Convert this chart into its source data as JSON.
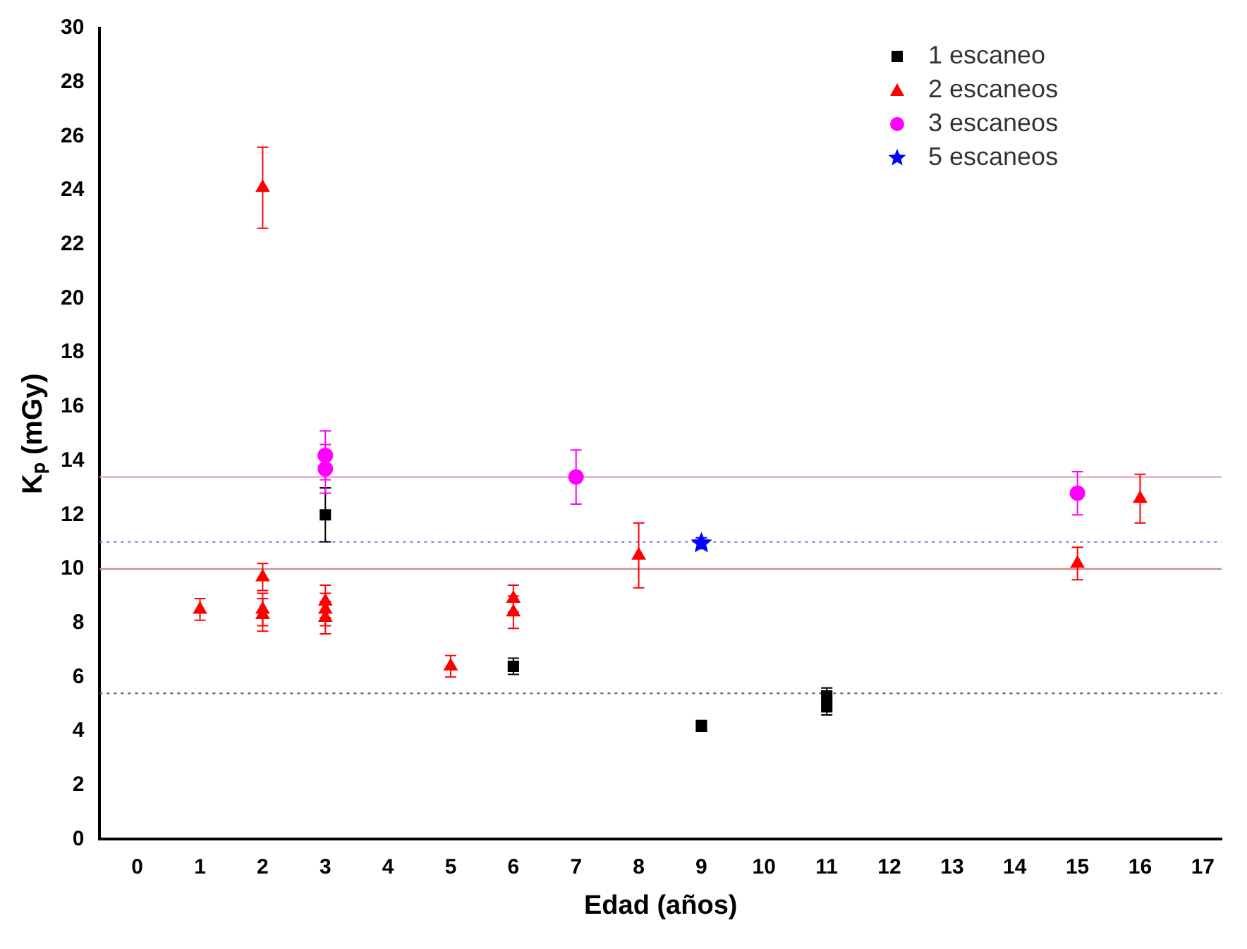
{
  "chart_data": {
    "type": "scatter",
    "xlabel": "Edad (años)",
    "ylabel": "Kₚ (mGy)",
    "xlim": [
      -0.6,
      17.3
    ],
    "xticks": [
      0,
      1,
      2,
      3,
      4,
      5,
      6,
      7,
      8,
      9,
      10,
      11,
      12,
      13,
      14,
      15,
      16,
      17
    ],
    "ylim": [
      0,
      30
    ],
    "yticks": [
      0,
      2,
      4,
      6,
      8,
      10,
      12,
      14,
      16,
      18,
      20,
      22,
      24,
      26,
      28,
      30
    ],
    "grid": false,
    "legend": "top right",
    "series": [
      {
        "name": "1 escaneo",
        "color": "#000000",
        "marker": "square",
        "x": [
          3,
          6,
          9,
          11,
          11
        ],
        "values": [
          12,
          6.4,
          4.2,
          5.3,
          4.9
        ],
        "errors": [
          1,
          0.3,
          0.2,
          0.3,
          0.3
        ]
      },
      {
        "name": "2 escaneos",
        "color": "#ff0000",
        "marker": "triangle",
        "x": [
          1,
          2,
          2,
          2,
          2,
          3,
          3,
          3,
          5,
          6,
          6,
          8,
          15,
          16
        ],
        "values": [
          8.5,
          24.1,
          9.7,
          8.5,
          8.3,
          8.8,
          8.5,
          8.2,
          6.4,
          8.9,
          8.4,
          10.5,
          10.2,
          12.6
        ],
        "errors": [
          0.4,
          1.5,
          0.5,
          0.6,
          0.6,
          0.6,
          0.6,
          0.6,
          0.4,
          0.5,
          0.6,
          1.2,
          0.6,
          0.9
        ]
      },
      {
        "name": "3 escaneos",
        "color": "#ff00ff",
        "marker": "circle",
        "x": [
          3,
          3,
          7,
          15
        ],
        "values": [
          14.2,
          13.7,
          13.4,
          12.8
        ],
        "errors": [
          0.9,
          0.9,
          1,
          0.8
        ]
      },
      {
        "name": "5 escaneos",
        "color": "#0000ff",
        "marker": "star",
        "x": [
          9
        ],
        "values": [
          10.95
        ],
        "errors": [
          0.2
        ]
      }
    ],
    "ref_lines": [
      {
        "axis": "y",
        "value": 13.4,
        "color": "#e8a8c8",
        "line_style": "solid"
      },
      {
        "axis": "y",
        "value": 11,
        "color": "#8080e0",
        "line_style": "dotted"
      },
      {
        "axis": "y",
        "value": 10,
        "color": "#c89090",
        "line_style": "solid"
      },
      {
        "axis": "y",
        "value": 5.4,
        "color": "#606060",
        "line_style": "dotted"
      }
    ]
  }
}
